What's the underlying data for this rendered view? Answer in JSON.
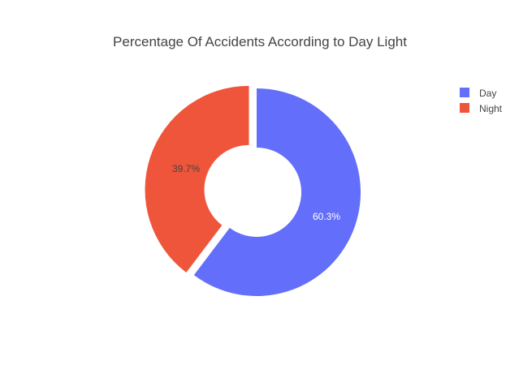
{
  "chart_data": {
    "type": "pie",
    "title": "Percentage Of Accidents According to Day Light",
    "hole": true,
    "labels": [
      "Day",
      "Night"
    ],
    "values": [
      60.3,
      39.7
    ],
    "value_labels": [
      "60.3%",
      "39.7%"
    ],
    "colors": [
      "#636efa",
      "#ef553b"
    ],
    "pulled_slice": "Night",
    "legend_position": "top-right"
  }
}
